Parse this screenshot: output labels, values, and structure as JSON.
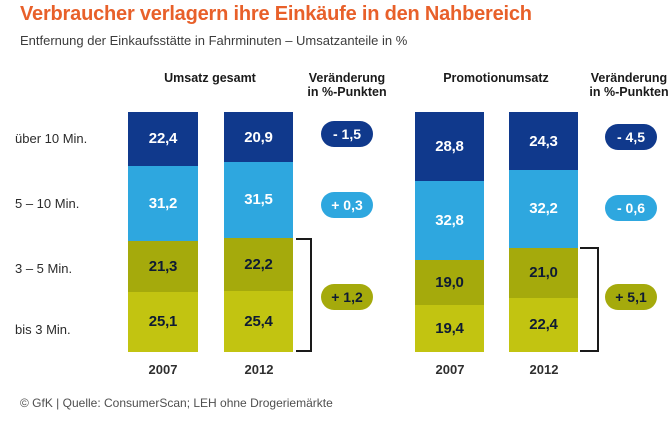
{
  "page": {
    "title": "Verbraucher verlagern ihre Einkäufe in den Nahbereich",
    "subtitle": "Entfernung der Einkaufsstätte in Fahrminuten – Umsatzanteile in %",
    "footer": "© GfK | Quelle: ConsumerScan; LEH ohne Drogeriemärkte"
  },
  "colors": {
    "title": "#E8602A",
    "dark_blue": "#10398C",
    "light_blue": "#2EA7DF",
    "olive_dark": "#A5AA0C",
    "olive_bright": "#C2C411",
    "text_on_blue": "#FFFFFF",
    "text_on_olive": "#0E1B33",
    "bracket": "#1A1A1A"
  },
  "chart_data": {
    "type": "bar",
    "stacked": true,
    "unit": "%",
    "value_range": [
      0,
      100
    ],
    "row_categories": [
      "über 10 Min.",
      "5 – 10 Min.",
      "3 – 5 Min.",
      "bis 3 Min."
    ],
    "segment_color_keys": [
      "dark_blue",
      "light_blue",
      "olive_dark",
      "olive_bright"
    ],
    "groups": [
      {
        "title": "Umsatz gesamt",
        "change_header": "Veränderung in %-Punkten",
        "bars": [
          {
            "year": "2007",
            "values": [
              22.4,
              31.2,
              21.3,
              25.1
            ],
            "labels": [
              "22,4",
              "31,2",
              "21,3",
              "25,1"
            ]
          },
          {
            "year": "2012",
            "values": [
              20.9,
              31.5,
              22.2,
              25.4
            ],
            "labels": [
              "20,9",
              "31,5",
              "22,2",
              "25,4"
            ]
          }
        ],
        "changes": [
          {
            "label": "- 1,5",
            "value": -1.5,
            "rows": [
              0
            ],
            "color_key": "dark_blue"
          },
          {
            "label": "+ 0,3",
            "value": 0.3,
            "rows": [
              1
            ],
            "color_key": "light_blue"
          },
          {
            "label": "+ 1,2",
            "value": 1.2,
            "rows": [
              2,
              3
            ],
            "color_key": "olive_dark"
          }
        ]
      },
      {
        "title": "Promotionumsatz",
        "change_header": "Veränderung in %-Punkten",
        "bars": [
          {
            "year": "2007",
            "values": [
              28.8,
              32.8,
              19.0,
              19.4
            ],
            "labels": [
              "28,8",
              "32,8",
              "19,0",
              "19,4"
            ]
          },
          {
            "year": "2012",
            "values": [
              24.3,
              32.2,
              21.0,
              22.4
            ],
            "labels": [
              "24,3",
              "32,2",
              "21,0",
              "22,4"
            ]
          }
        ],
        "changes": [
          {
            "label": "- 4,5",
            "value": -4.5,
            "rows": [
              0
            ],
            "color_key": "dark_blue"
          },
          {
            "label": "- 0,6",
            "value": -0.6,
            "rows": [
              1
            ],
            "color_key": "light_blue"
          },
          {
            "label": "+ 5,1",
            "value": 5.1,
            "rows": [
              2,
              3
            ],
            "color_key": "olive_dark"
          }
        ]
      }
    ]
  }
}
